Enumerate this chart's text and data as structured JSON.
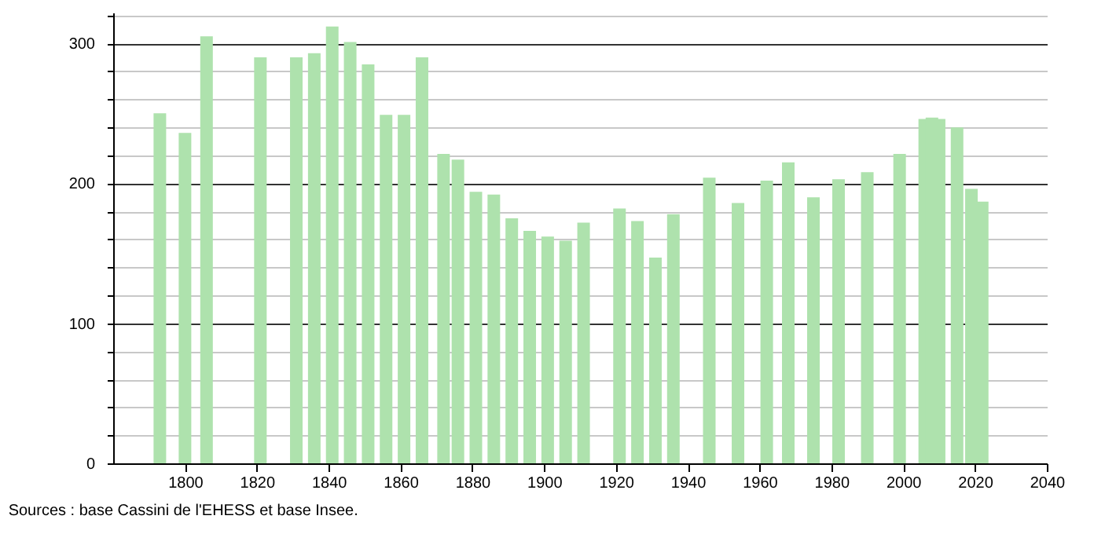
{
  "chart_data": {
    "type": "bar",
    "x": [
      1793,
      1800,
      1806,
      1821,
      1831,
      1836,
      1841,
      1846,
      1851,
      1856,
      1861,
      1866,
      1872,
      1876,
      1881,
      1886,
      1891,
      1896,
      1901,
      1906,
      1911,
      1921,
      1926,
      1931,
      1936,
      1946,
      1954,
      1962,
      1968,
      1975,
      1982,
      1990,
      1999,
      2006,
      2008,
      2010,
      2015,
      2019,
      2022
    ],
    "values": [
      250,
      236,
      305,
      290,
      290,
      293,
      312,
      301,
      285,
      249,
      249,
      290,
      221,
      217,
      194,
      192,
      175,
      166,
      162,
      159,
      172,
      182,
      173,
      147,
      178,
      204,
      186,
      202,
      215,
      190,
      203,
      208,
      221,
      246,
      247,
      246,
      240,
      196,
      187
    ],
    "color": "#aee2ad",
    "xlim": [
      1780,
      2040
    ],
    "xticks": [
      1800,
      1820,
      1840,
      1860,
      1880,
      1900,
      1920,
      1940,
      1960,
      1980,
      2000,
      2020,
      2040
    ],
    "ylim": [
      0,
      322
    ],
    "yticks": [
      0,
      {
        "value": 20,
        "label": null
      },
      {
        "value": 40,
        "label": null
      },
      {
        "value": 60,
        "label": null
      },
      {
        "value": 80,
        "label": null
      },
      100,
      {
        "value": 120,
        "label": null
      },
      {
        "value": 140,
        "label": null
      },
      {
        "value": 160,
        "label": null
      },
      {
        "value": 180,
        "label": null
      },
      200,
      {
        "value": 220,
        "label": null
      },
      {
        "value": 240,
        "label": null
      },
      {
        "value": 260,
        "label": null
      },
      {
        "value": 280,
        "label": null
      },
      300,
      {
        "value": 320,
        "label": null
      }
    ],
    "grid": "y",
    "annotations": [
      "Sources : base Cassini de l'EHESS et base Insee."
    ]
  }
}
